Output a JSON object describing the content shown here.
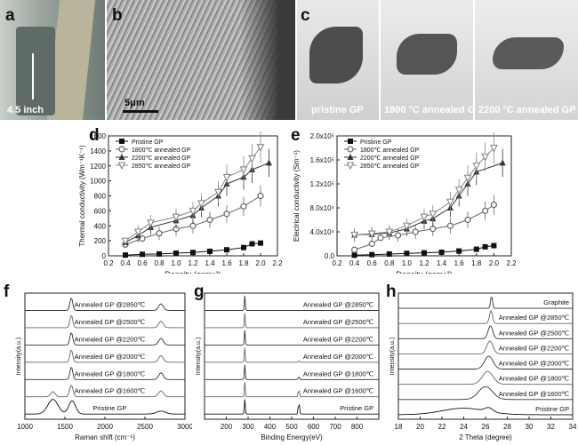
{
  "photos": {
    "a": {
      "label": "a",
      "caption": "4.5 inch"
    },
    "b": {
      "label": "b",
      "scalebar": "5μm"
    },
    "c": {
      "label": "c",
      "captions": [
        "pristine GP",
        "1800 °C annealed GP",
        "2200 °C annealed GP"
      ]
    }
  },
  "chart_data": [
    {
      "id": "d",
      "panel": "d",
      "type": "line",
      "xlabel": "Density (gcm⁻³)",
      "ylabel": "Thermal conductivity (Wm⁻¹K⁻¹)",
      "xlim": [
        0.2,
        2.2
      ],
      "ylim": [
        0,
        1600
      ],
      "xticks": [
        "0.2",
        "0.4",
        "0.6",
        "0.8",
        "1.0",
        "1.2",
        "1.4",
        "1.6",
        "1.8",
        "2.0",
        "2.2"
      ],
      "yticks": [
        "0",
        "200",
        "400",
        "600",
        "800",
        "1000",
        "1200",
        "1400",
        "1600"
      ],
      "legend_position": "top-left",
      "series": [
        {
          "name": "Pristine GP",
          "marker": "square",
          "color": "#111111",
          "x": [
            0.4,
            0.6,
            0.8,
            1.0,
            1.2,
            1.4,
            1.6,
            1.8,
            1.9,
            2.0
          ],
          "y": [
            10,
            20,
            25,
            35,
            45,
            60,
            80,
            110,
            160,
            170
          ]
        },
        {
          "name": "1800℃ annealed GP",
          "marker": "circle",
          "color": "#666666",
          "x": [
            0.4,
            0.6,
            0.8,
            1.0,
            1.2,
            1.4,
            1.6,
            1.8,
            2.0
          ],
          "y": [
            150,
            230,
            300,
            360,
            400,
            480,
            560,
            660,
            800
          ]
        },
        {
          "name": "2200℃ annealed GP",
          "marker": "triangle",
          "color": "#333333",
          "x": [
            0.4,
            0.55,
            0.7,
            1.0,
            1.2,
            1.3,
            1.5,
            1.6,
            1.8,
            1.9,
            2.1
          ],
          "y": [
            180,
            270,
            380,
            470,
            540,
            640,
            800,
            960,
            1050,
            1150,
            1240
          ]
        },
        {
          "name": "2850℃ annealed GP",
          "marker": "triangle-down",
          "color": "#888888",
          "x": [
            0.4,
            0.55,
            0.7,
            1.0,
            1.2,
            1.3,
            1.5,
            1.6,
            1.8,
            1.9,
            2.0
          ],
          "y": [
            200,
            320,
            440,
            520,
            600,
            700,
            850,
            1050,
            1150,
            1300,
            1450
          ]
        }
      ]
    },
    {
      "id": "e",
      "panel": "e",
      "type": "line",
      "xlabel": "Density (gcm⁻³)",
      "ylabel": "Electrical conductivity (Sm⁻¹)",
      "xlim": [
        0.2,
        2.2
      ],
      "ylim": [
        0,
        200000
      ],
      "xticks": [
        "0.2",
        "0.4",
        "0.6",
        "0.8",
        "1.0",
        "1.2",
        "1.4",
        "1.6",
        "1.8",
        "2.0",
        "2.2"
      ],
      "yticks": [
        "0.0",
        "4.0x10⁴",
        "8.0x10⁴",
        "1.2x10⁵",
        "1.6x10⁵",
        "2.0x10⁵"
      ],
      "legend_position": "top-left",
      "series": [
        {
          "name": "Pristine GP",
          "marker": "square",
          "color": "#111111",
          "x": [
            0.4,
            0.6,
            0.8,
            1.0,
            1.2,
            1.4,
            1.6,
            1.8,
            1.9,
            2.0
          ],
          "y": [
            1000,
            2000,
            3000,
            4000,
            5000,
            6000,
            8000,
            11000,
            15000,
            17000
          ]
        },
        {
          "name": "1800℃ annealed GP",
          "marker": "circle",
          "color": "#666666",
          "x": [
            0.4,
            0.6,
            0.7,
            0.9,
            1.1,
            1.3,
            1.5,
            1.7,
            1.9,
            2.0
          ],
          "y": [
            10000,
            20000,
            30000,
            34000,
            40000,
            45000,
            50000,
            60000,
            75000,
            85000
          ]
        },
        {
          "name": "2200℃ annealed GP",
          "marker": "triangle",
          "color": "#333333",
          "x": [
            0.4,
            0.6,
            0.8,
            1.0,
            1.2,
            1.3,
            1.5,
            1.6,
            1.7,
            1.8,
            2.1
          ],
          "y": [
            35000,
            36000,
            38000,
            45000,
            58000,
            62000,
            80000,
            100000,
            120000,
            140000,
            155000
          ]
        },
        {
          "name": "2850℃ annealed GP",
          "marker": "triangle-down",
          "color": "#888888",
          "x": [
            0.4,
            0.6,
            0.8,
            1.0,
            1.2,
            1.3,
            1.5,
            1.6,
            1.7,
            1.8,
            1.9,
            2.0
          ],
          "y": [
            35000,
            37000,
            40000,
            50000,
            65000,
            70000,
            90000,
            110000,
            130000,
            150000,
            165000,
            180000
          ]
        }
      ]
    },
    {
      "id": "f",
      "panel": "f",
      "type": "line",
      "xlabel": "Raman shift (cm⁻¹)",
      "ylabel": "Intensity(a.u.)",
      "xlim": [
        1000,
        3000
      ],
      "xticks": [
        "1000",
        "1500",
        "2000",
        "2500",
        "3000"
      ],
      "legend_position": "none",
      "series": [
        {
          "name": "Annealed GP @2850℃",
          "peaks": [
            {
              "x": 1580,
              "h": 0.85,
              "w": 25
            },
            {
              "x": 2700,
              "h": 0.45,
              "w": 40
            }
          ]
        },
        {
          "name": "Annealed GP @2500℃",
          "peaks": [
            {
              "x": 1580,
              "h": 0.85,
              "w": 25
            },
            {
              "x": 2700,
              "h": 0.45,
              "w": 40
            }
          ]
        },
        {
          "name": "Annealed GP @2200℃",
          "peaks": [
            {
              "x": 1580,
              "h": 0.85,
              "w": 25
            },
            {
              "x": 2700,
              "h": 0.45,
              "w": 40
            }
          ]
        },
        {
          "name": "Annealed GP @2000℃",
          "peaks": [
            {
              "x": 1580,
              "h": 0.85,
              "w": 25
            },
            {
              "x": 2700,
              "h": 0.45,
              "w": 40
            }
          ]
        },
        {
          "name": "Annealed GP @1800℃",
          "peaks": [
            {
              "x": 1580,
              "h": 0.85,
              "w": 25
            },
            {
              "x": 2700,
              "h": 0.45,
              "w": 40
            }
          ]
        },
        {
          "name": "Annealed GP @1600℃",
          "peaks": [
            {
              "x": 1350,
              "h": 0.35,
              "w": 40
            },
            {
              "x": 1580,
              "h": 0.8,
              "w": 30
            },
            {
              "x": 2700,
              "h": 0.4,
              "w": 45
            }
          ]
        },
        {
          "name": "Pristine GP",
          "peaks": [
            {
              "x": 1350,
              "h": 1.0,
              "w": 90
            },
            {
              "x": 1590,
              "h": 0.9,
              "w": 60
            },
            {
              "x": 2700,
              "h": 0.2,
              "w": 80
            }
          ]
        }
      ]
    },
    {
      "id": "g",
      "panel": "g",
      "type": "line",
      "xlabel": "Binding Energy(eV)",
      "ylabel": "Intensity(a.u.)",
      "xlim": [
        100,
        900
      ],
      "xticks": [
        "200",
        "300",
        "400",
        "500",
        "600",
        "700",
        "800"
      ],
      "legend_position": "none",
      "series": [
        {
          "name": "Annealed GP @2850℃",
          "peaks": [
            {
              "x": 285,
              "h": 1.0,
              "w": 3
            }
          ]
        },
        {
          "name": "Annealed GP @2500℃",
          "peaks": [
            {
              "x": 285,
              "h": 1.0,
              "w": 3
            }
          ]
        },
        {
          "name": "Annealed GP @2200℃",
          "peaks": [
            {
              "x": 285,
              "h": 1.0,
              "w": 3
            }
          ]
        },
        {
          "name": "Annealed GP @2000℃",
          "peaks": [
            {
              "x": 285,
              "h": 1.0,
              "w": 3
            },
            {
              "x": 533,
              "h": 0.1,
              "w": 4
            }
          ]
        },
        {
          "name": "Annealed GP @1800℃",
          "peaks": [
            {
              "x": 285,
              "h": 1.0,
              "w": 3
            },
            {
              "x": 533,
              "h": 0.2,
              "w": 4
            }
          ]
        },
        {
          "name": "Annealed GP @1600℃",
          "peaks": [
            {
              "x": 285,
              "h": 1.0,
              "w": 3
            },
            {
              "x": 533,
              "h": 0.5,
              "w": 4
            }
          ]
        },
        {
          "name": "Pristine GP",
          "peaks": [
            {
              "x": 285,
              "h": 1.0,
              "w": 3
            },
            {
              "x": 533,
              "h": 0.8,
              "w": 4
            }
          ]
        }
      ]
    },
    {
      "id": "h",
      "panel": "h",
      "type": "line",
      "xlabel": "2 Theta (degree)",
      "ylabel": "Intensity(a.u.)",
      "xlim": [
        18,
        34
      ],
      "xticks": [
        "18",
        "20",
        "22",
        "24",
        "26",
        "28",
        "30",
        "32",
        "34"
      ],
      "legend_position": "none",
      "series": [
        {
          "name": "Graphite",
          "peaks": [
            {
              "x": 26.55,
              "h": 1.0,
              "w": 0.12
            }
          ]
        },
        {
          "name": "Annealed GP @2850℃",
          "peaks": [
            {
              "x": 26.5,
              "h": 1.0,
              "w": 0.2
            }
          ]
        },
        {
          "name": "Annealed GP @2500℃",
          "peaks": [
            {
              "x": 26.45,
              "h": 1.0,
              "w": 0.3
            }
          ]
        },
        {
          "name": "Annealed GP @2200℃",
          "peaks": [
            {
              "x": 26.4,
              "h": 1.0,
              "w": 0.4
            }
          ]
        },
        {
          "name": "Annealed GP @2000℃",
          "peaks": [
            {
              "x": 26.3,
              "h": 1.0,
              "w": 0.55
            }
          ]
        },
        {
          "name": "Annealed GP @1800℃",
          "peaks": [
            {
              "x": 26.2,
              "h": 1.0,
              "w": 0.7
            }
          ]
        },
        {
          "name": "Annealed GP @1600℃",
          "peaks": [
            {
              "x": 26.0,
              "h": 1.0,
              "w": 0.9
            }
          ]
        },
        {
          "name": "Pristine GP",
          "peaks": [
            {
              "x": 24.0,
              "h": 0.5,
              "w": 2.8
            },
            {
              "x": 26.3,
              "h": 0.3,
              "w": 0.5
            }
          ]
        }
      ]
    }
  ]
}
